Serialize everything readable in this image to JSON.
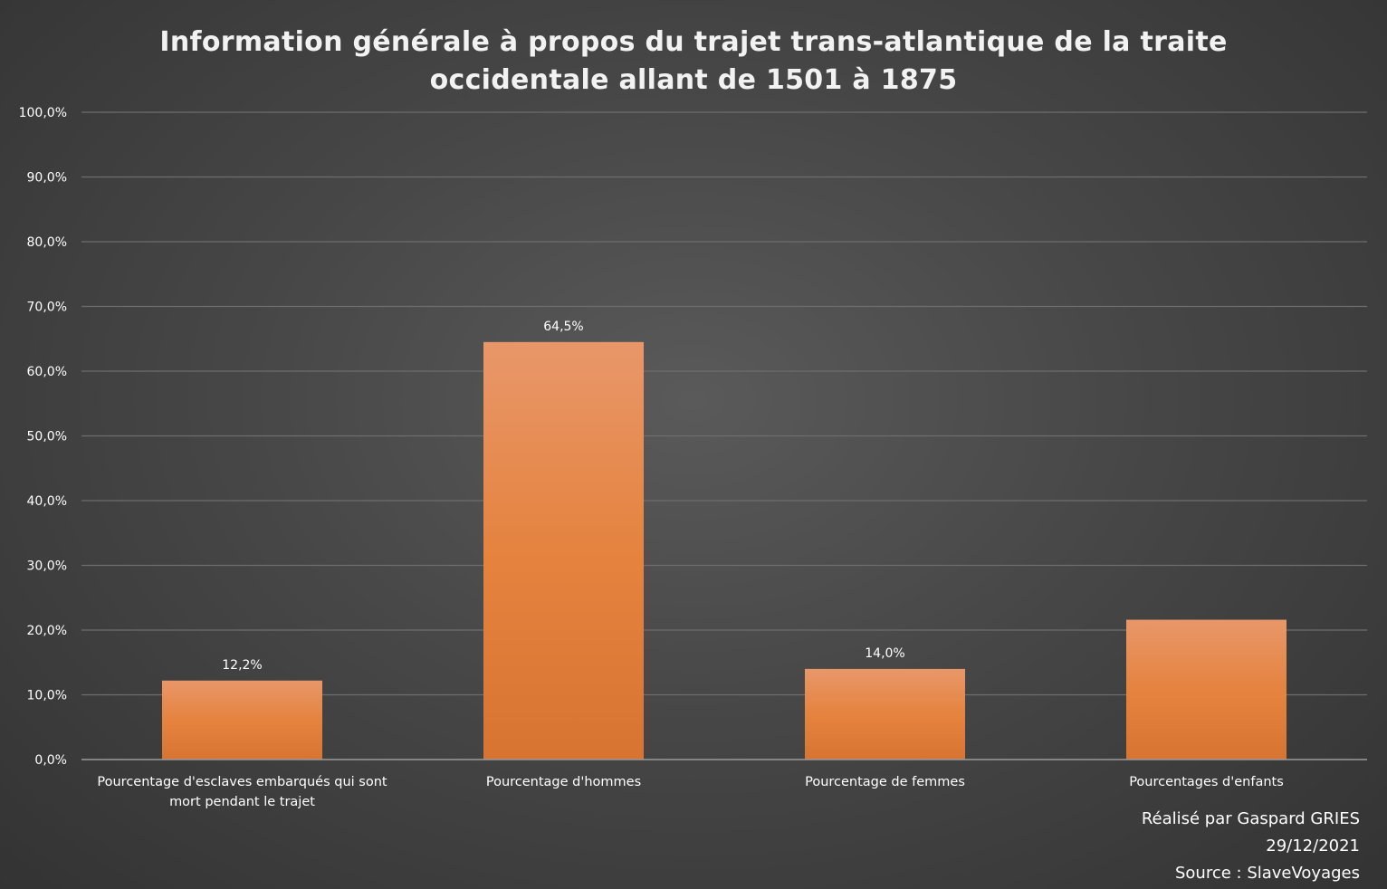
{
  "chart_data": {
    "type": "bar",
    "title_lines": [
      "Information générale à propos du trajet trans-atlantique de la traite",
      "occidentale allant de 1501 à 1875"
    ],
    "categories": [
      [
        "Pourcentage d'esclaves embarqués qui sont",
        "mort pendant le trajet"
      ],
      [
        "Pourcentage d'hommes"
      ],
      [
        "Pourcentage de femmes"
      ],
      [
        "Pourcentages d'enfants"
      ]
    ],
    "values": [
      12.2,
      64.5,
      14.0,
      21.6
    ],
    "data_labels": [
      "12,2%",
      "64,5%",
      "14,0%",
      ""
    ],
    "ylim": [
      0,
      100
    ],
    "y_ticks": [
      "0,0%",
      "10,0%",
      "20,0%",
      "30,0%",
      "40,0%",
      "50,0%",
      "60,0%",
      "70,0%",
      "80,0%",
      "90,0%",
      "100,0%"
    ],
    "grid": true,
    "legend": "none",
    "bar_color": "#E5833F"
  },
  "credits": {
    "author": "Réalisé par Gaspard GRIES",
    "date": "29/12/2021",
    "source": "Source : SlaveVoyages"
  }
}
